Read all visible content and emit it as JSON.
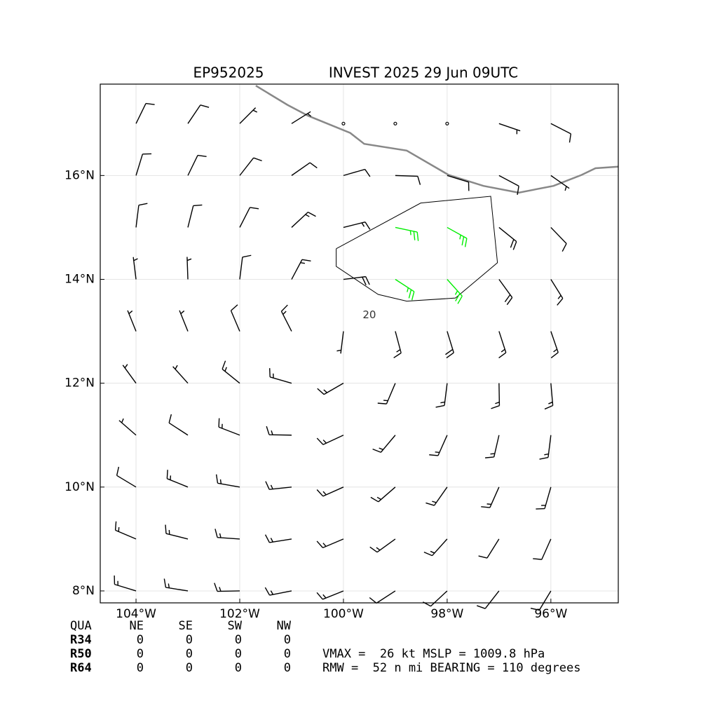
{
  "map": {
    "title_left": "EP952025",
    "title_right": "INVEST 2025 29 Jun 09UTC",
    "xlim": [
      -104.69,
      -94.7
    ],
    "ylim": [
      7.77,
      17.76
    ],
    "xticks": [
      {
        "value": -104,
        "label": "104°W"
      },
      {
        "value": -102,
        "label": "102°W"
      },
      {
        "value": -100,
        "label": "100°W"
      },
      {
        "value": -98,
        "label": "98°W"
      },
      {
        "value": -96,
        "label": "96°W"
      }
    ],
    "yticks": [
      {
        "value": 8,
        "label": "8°N"
      },
      {
        "value": 10,
        "label": "10°N"
      },
      {
        "value": 12,
        "label": "12°N"
      },
      {
        "value": 14,
        "label": "14°N"
      },
      {
        "value": 16,
        "label": "16°N"
      }
    ],
    "grid": true,
    "coastline_color": "#888888",
    "coastline": [
      [
        -101.69,
        17.73
      ],
      [
        -101.08,
        17.36
      ],
      [
        -100.68,
        17.15
      ],
      [
        -99.87,
        16.82
      ],
      [
        -99.6,
        16.61
      ],
      [
        -98.78,
        16.48
      ],
      [
        -97.97,
        16.01
      ],
      [
        -97.3,
        15.8
      ],
      [
        -96.62,
        15.67
      ],
      [
        -95.95,
        15.8
      ],
      [
        -95.41,
        16.01
      ],
      [
        -95.14,
        16.14
      ],
      [
        -94.7,
        16.17
      ]
    ],
    "contour": {
      "level": 20,
      "label_at": [
        -99.5,
        13.31
      ],
      "points": [
        [
          -100.14,
          14.59
        ],
        [
          -98.51,
          15.47
        ],
        [
          -97.16,
          15.6
        ],
        [
          -97.03,
          14.32
        ],
        [
          -97.84,
          13.64
        ],
        [
          -98.78,
          13.58
        ],
        [
          -99.33,
          13.71
        ],
        [
          -100.14,
          14.25
        ],
        [
          -100.14,
          14.59
        ]
      ]
    },
    "wind": {
      "lons": [
        -104,
        -103,
        -102,
        -101,
        -100,
        -99,
        -98,
        -97,
        -96
      ],
      "lats": [
        17,
        16,
        15,
        14,
        13,
        12,
        11,
        10,
        9,
        8
      ],
      "speed_colors": [
        {
          "min": 0,
          "color": "#000000"
        },
        {
          "min": 25,
          "color": "#00ee00"
        }
      ],
      "direction": [
        [
          26,
          34,
          45,
          58,
          73,
          87,
          99,
          109,
          117
        ],
        [
          17,
          26,
          38,
          55,
          74,
          92,
          107,
          118,
          125
        ],
        [
          7,
          14,
          27,
          47,
          76,
          102,
          119,
          129,
          136
        ],
        [
          353,
          358,
          7,
          28,
          83,
          123,
          138,
          144,
          148
        ],
        [
          338,
          338,
          337,
          333,
          187,
          165,
          163,
          162,
          161
        ],
        [
          324,
          318,
          309,
          286,
          240,
          203,
          187,
          179,
          175
        ],
        [
          311,
          303,
          291,
          271,
          245,
          220,
          204,
          193,
          187
        ],
        [
          301,
          292,
          280,
          264,
          246,
          229,
          215,
          204,
          196
        ],
        [
          293,
          284,
          274,
          261,
          247,
          234,
          222,
          212,
          204
        ],
        [
          287,
          279,
          269,
          259,
          248,
          237,
          227,
          218,
          211
        ]
      ],
      "speed": [
        [
          10,
          10,
          8,
          5,
          0,
          0,
          0,
          5,
          10
        ],
        [
          10,
          10,
          10,
          10,
          10,
          10,
          10,
          10,
          5
        ],
        [
          10,
          10,
          10,
          15,
          15,
          25,
          25,
          20,
          10
        ],
        [
          5,
          5,
          10,
          15,
          20,
          25,
          25,
          20,
          15
        ],
        [
          5,
          5,
          10,
          15,
          5,
          15,
          20,
          15,
          15
        ],
        [
          5,
          5,
          15,
          15,
          15,
          15,
          15,
          15,
          15
        ],
        [
          5,
          10,
          15,
          15,
          15,
          15,
          15,
          15,
          15
        ],
        [
          10,
          15,
          15,
          15,
          15,
          15,
          15,
          15,
          15
        ],
        [
          15,
          15,
          15,
          15,
          15,
          15,
          15,
          10,
          10
        ],
        [
          15,
          15,
          15,
          15,
          15,
          10,
          10,
          10,
          10
        ]
      ]
    },
    "radii_table": {
      "header": [
        "QUA",
        "NE",
        "SE",
        "SW",
        "NW"
      ],
      "rows": [
        [
          "R34",
          0,
          0,
          0,
          0
        ],
        [
          "R50",
          0,
          0,
          0,
          0
        ],
        [
          "R64",
          0,
          0,
          0,
          0
        ]
      ]
    },
    "info": [
      "VMAX =  26 kt MSLP = 1009.8 hPa",
      "RMW =  52 n mi BEARING = 110 degrees"
    ]
  }
}
